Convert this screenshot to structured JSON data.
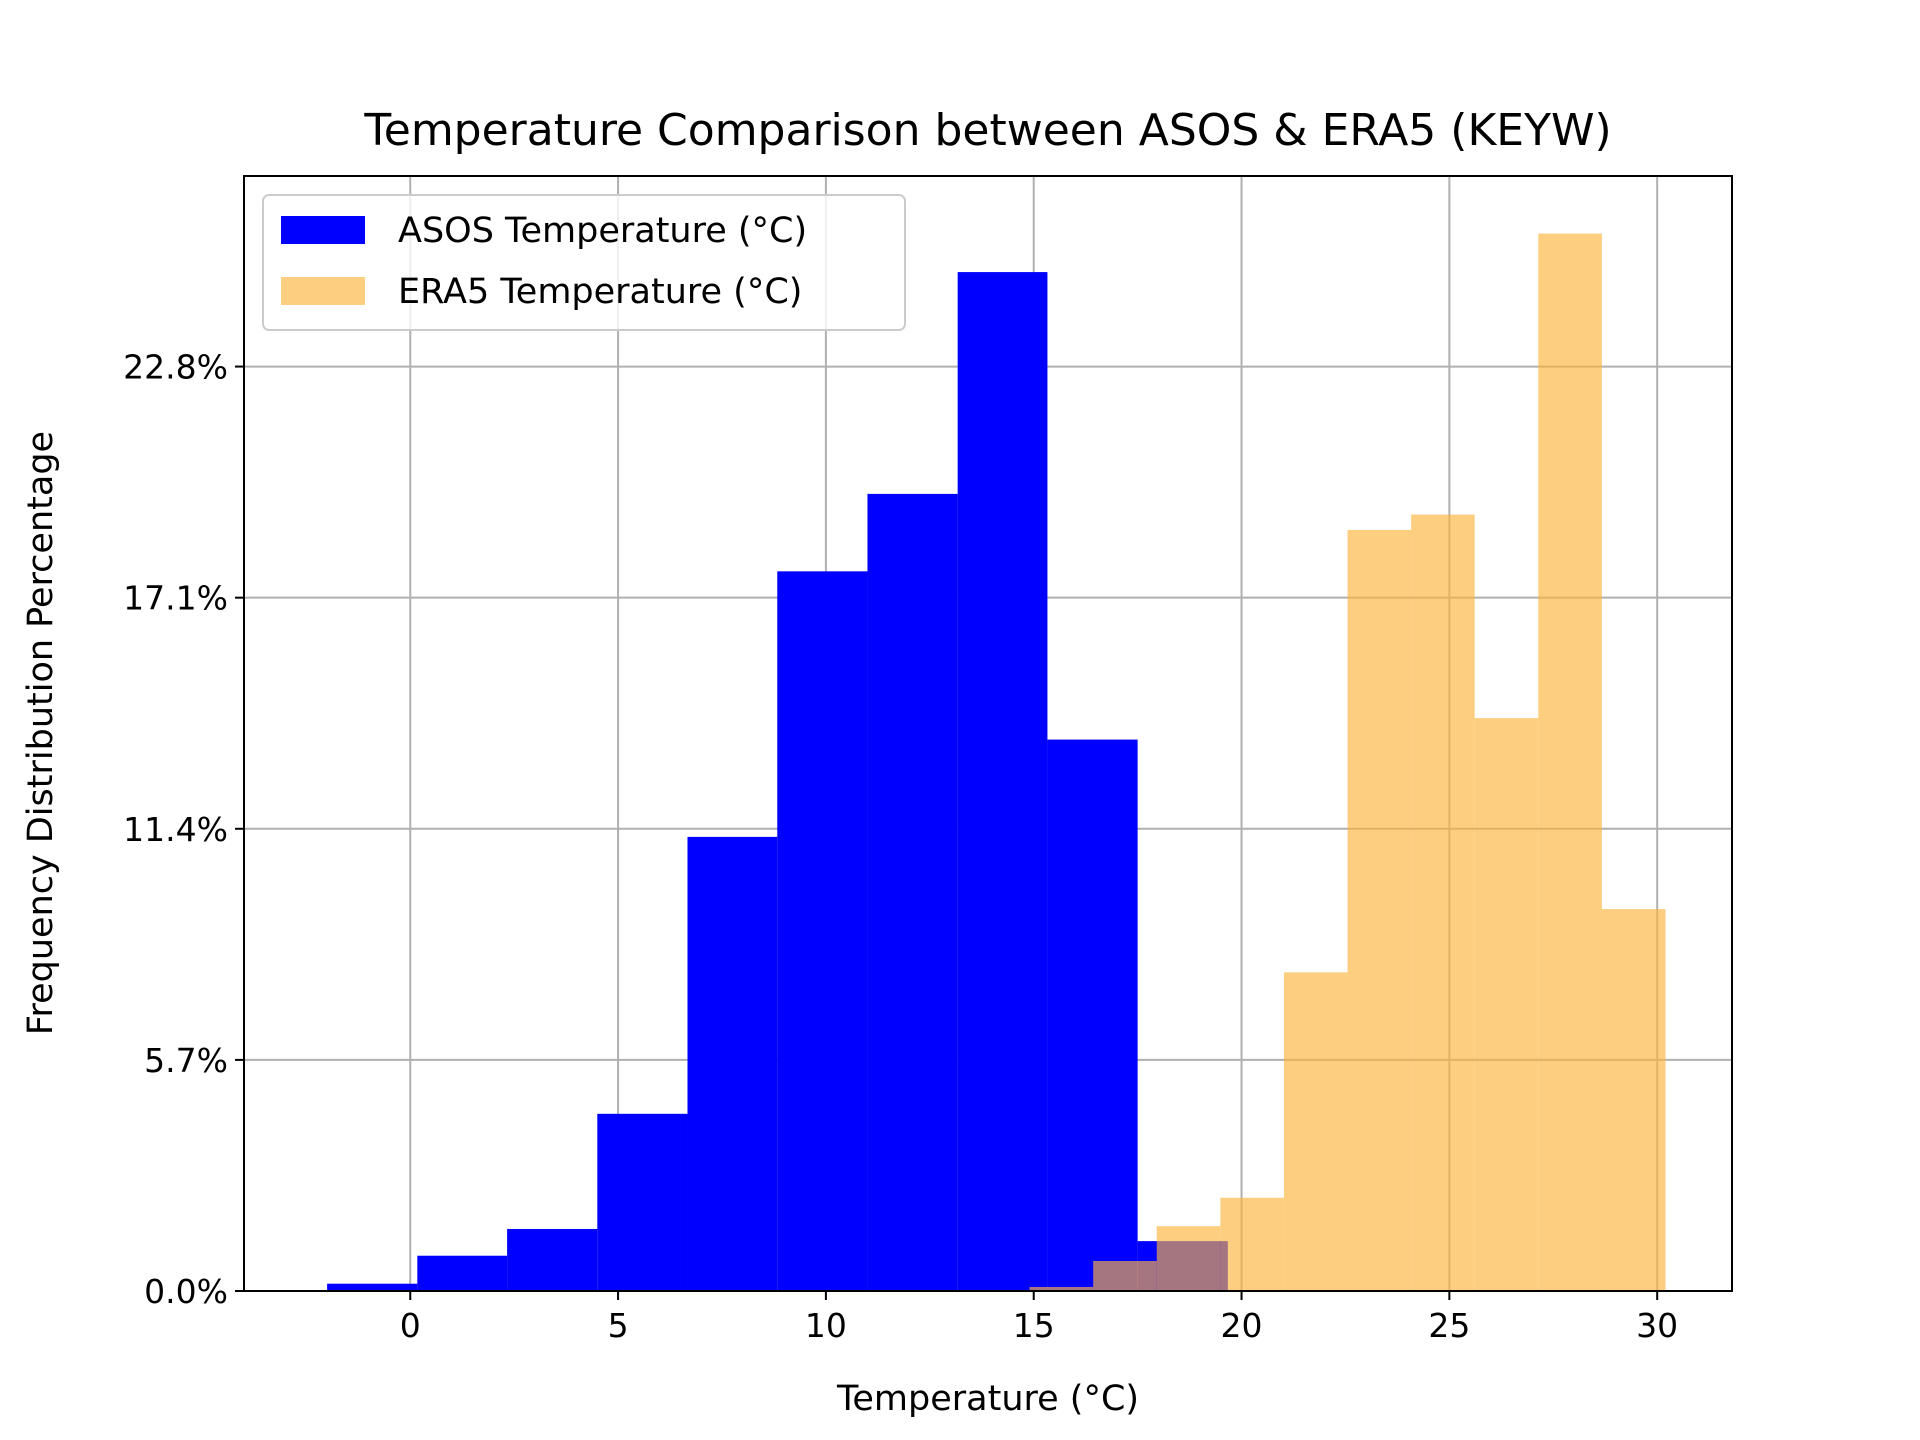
{
  "chart_data": {
    "type": "bar",
    "title": "Temperature Comparison between ASOS & ERA5 (KEYW)",
    "xlabel": "Temperature (°C)",
    "ylabel": "Frequency Distribution Percentage",
    "xlim": [
      -4.0,
      31.8
    ],
    "ylim": [
      0,
      27.5
    ],
    "x_ticks": [
      0,
      5,
      10,
      15,
      20,
      25,
      30
    ],
    "x_tick_labels": [
      "0",
      "5",
      "10",
      "15",
      "20",
      "25",
      "30"
    ],
    "y_ticks": [
      0.0,
      5.7,
      11.4,
      17.1,
      22.8
    ],
    "y_tick_labels": [
      "0.0%",
      "5.7%",
      "11.4%",
      "17.1%",
      "22.8%"
    ],
    "grid": true,
    "legend_position": "upper-left",
    "series": [
      {
        "name": "ASOS Temperature (°C)",
        "color": "#0000ff",
        "opacity": 1.0,
        "bin_edges": [
          -2.0,
          0.17,
          2.33,
          4.5,
          6.67,
          8.83,
          11.0,
          13.17,
          15.33,
          17.5,
          19.67
        ],
        "values": [
          0.18,
          0.87,
          1.53,
          4.37,
          11.2,
          17.75,
          19.66,
          25.13,
          13.6,
          1.23
        ]
      },
      {
        "name": "ERA5 Temperature (°C)",
        "color": "#fdb33c",
        "opacity": 0.65,
        "bin_edges": [
          14.9,
          16.43,
          17.96,
          19.49,
          21.02,
          22.55,
          24.08,
          25.61,
          27.14,
          28.67,
          30.2
        ],
        "values": [
          0.1,
          0.74,
          1.6,
          2.3,
          7.86,
          18.77,
          19.15,
          14.13,
          26.08,
          9.42
        ]
      }
    ]
  }
}
